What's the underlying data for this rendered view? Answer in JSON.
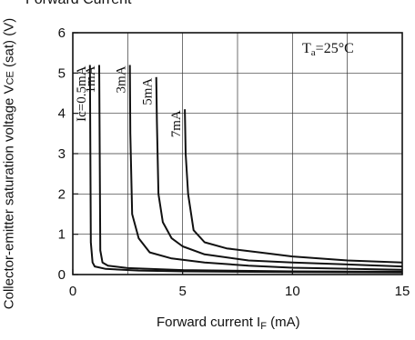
{
  "chart_data": {
    "type": "line",
    "title": "Forward Current",
    "xlabel": {
      "main": "Forward current I",
      "sub": "F",
      "unit": " (mA)"
    },
    "ylabel": {
      "main": "Collector-emitter saturation voltage V",
      "sub": "CE",
      "unit": " (sat) (V)"
    },
    "annotation": {
      "main": "T",
      "sub": "a",
      "rest": "=25°C"
    },
    "xlim": [
      0,
      15
    ],
    "ylim": [
      0,
      6
    ],
    "x_ticks": [
      "0",
      "5",
      "10",
      "15"
    ],
    "y_ticks": [
      "0",
      "1",
      "2",
      "3",
      "4",
      "5",
      "6"
    ],
    "grid": true,
    "series": [
      {
        "name": "Ic=0.5mA",
        "x": [
          0.78,
          0.82,
          0.9,
          1.0,
          1.5,
          3,
          5,
          10,
          15
        ],
        "y": [
          5.2,
          0.8,
          0.3,
          0.2,
          0.14,
          0.1,
          0.08,
          0.06,
          0.05
        ]
      },
      {
        "name": "1mA",
        "x": [
          1.2,
          1.25,
          1.35,
          1.6,
          2.5,
          5,
          10,
          15
        ],
        "y": [
          5.2,
          0.6,
          0.3,
          0.22,
          0.16,
          0.11,
          0.08,
          0.07
        ]
      },
      {
        "name": "3mA",
        "x": [
          2.6,
          2.62,
          2.7,
          3.0,
          3.5,
          4.5,
          6,
          8,
          10,
          15
        ],
        "y": [
          5.2,
          3.5,
          1.5,
          0.9,
          0.55,
          0.4,
          0.3,
          0.22,
          0.17,
          0.12
        ]
      },
      {
        "name": "5mA",
        "x": [
          3.8,
          3.83,
          3.9,
          4.1,
          4.5,
          5,
          6,
          8,
          10,
          15
        ],
        "y": [
          4.9,
          3.8,
          2.0,
          1.3,
          0.9,
          0.7,
          0.5,
          0.35,
          0.3,
          0.2
        ]
      },
      {
        "name": "7mA",
        "x": [
          5.1,
          5.14,
          5.25,
          5.5,
          6.0,
          7.0,
          8.5,
          10,
          12.5,
          15
        ],
        "y": [
          4.1,
          3.0,
          2.0,
          1.1,
          0.8,
          0.65,
          0.55,
          0.45,
          0.35,
          0.3
        ]
      }
    ]
  }
}
